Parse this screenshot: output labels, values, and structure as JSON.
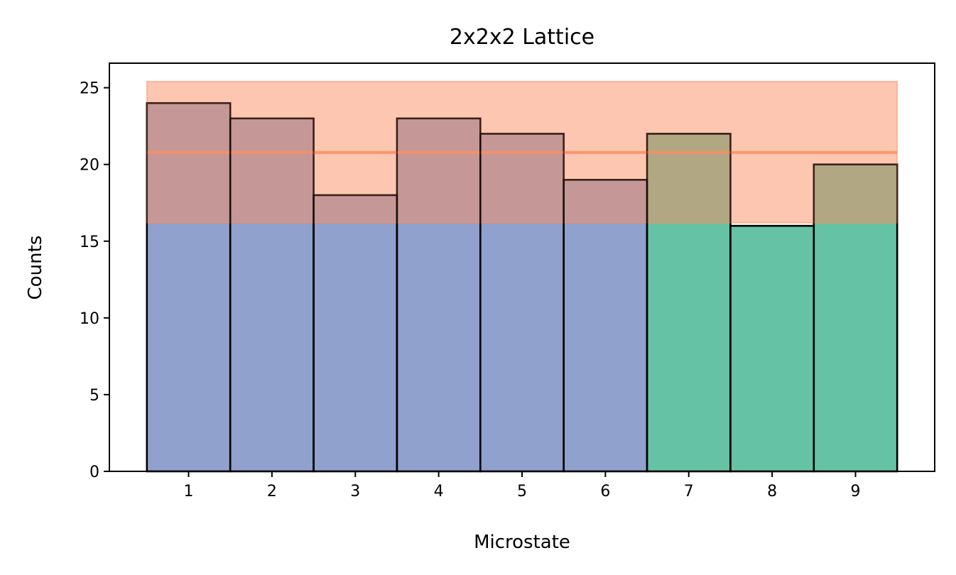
{
  "chart_data": {
    "type": "bar",
    "title": "2x2x2 Lattice",
    "xlabel": "Microstate",
    "ylabel": "Counts",
    "categories": [
      1,
      2,
      3,
      4,
      5,
      6,
      7,
      8,
      9
    ],
    "ylim": [
      0,
      26.6
    ],
    "xlim": [
      0.05,
      9.95
    ],
    "yticks": [
      0,
      5,
      10,
      15,
      20,
      25
    ],
    "series": [
      {
        "values": [
          24,
          23,
          18,
          23,
          22,
          19,
          22,
          16,
          20
        ],
        "colors": [
          "#8fa1cc",
          "#8fa1cc",
          "#8fa1cc",
          "#8fa1cc",
          "#8fa1cc",
          "#8fa1cc",
          "#66c2a5",
          "#66c2a5",
          "#66c2a5"
        ]
      }
    ],
    "mean_line": 20.78,
    "band": [
      16.2,
      25.4
    ],
    "band_color": "#fc8d62",
    "grid": false,
    "legend": "none"
  }
}
